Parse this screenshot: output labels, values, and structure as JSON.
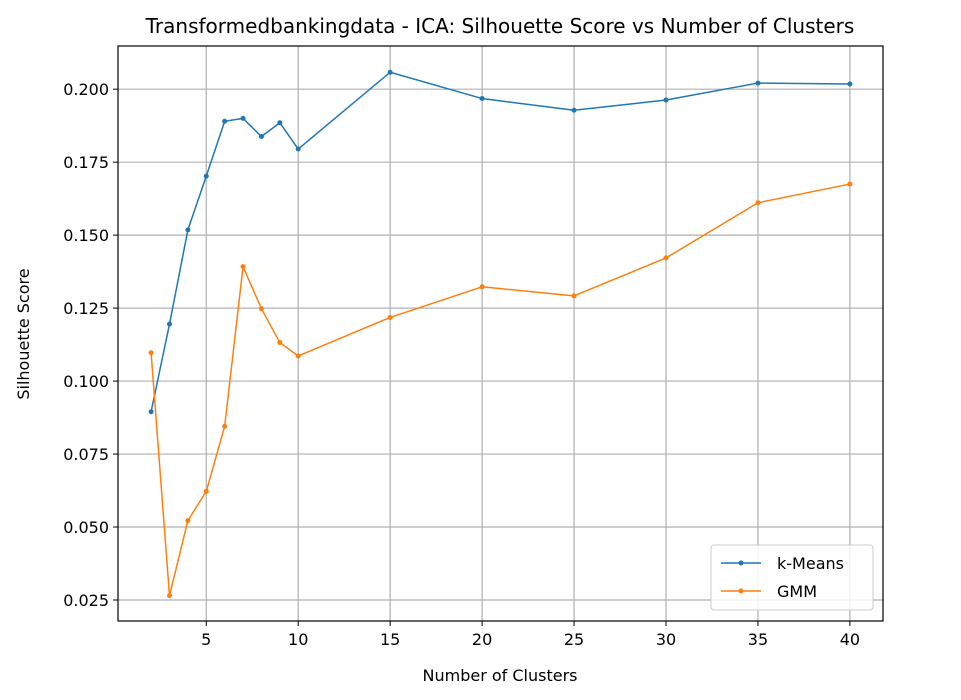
{
  "chart_data": {
    "type": "line",
    "title": "Transformedbankingdata - ICA: Silhouette Score vs Number of Clusters",
    "xlabel": "Number of Clusters",
    "ylabel": "Silhouette Score",
    "x": [
      2,
      3,
      4,
      5,
      6,
      7,
      8,
      9,
      10,
      15,
      20,
      25,
      30,
      35,
      40
    ],
    "xlim": [
      0.2,
      41.8
    ],
    "ylim": [
      0.0178,
      0.2148
    ],
    "xticks": [
      5,
      10,
      15,
      20,
      25,
      30,
      35,
      40
    ],
    "yticks": [
      0.025,
      0.05,
      0.075,
      0.1,
      0.125,
      0.15,
      0.175,
      0.2
    ],
    "xtick_labels": [
      "5",
      "10",
      "15",
      "20",
      "25",
      "30",
      "35",
      "40"
    ],
    "ytick_labels": [
      "0.025",
      "0.050",
      "0.075",
      "0.100",
      "0.125",
      "0.150",
      "0.175",
      "0.200"
    ],
    "grid": true,
    "legend_position": "lower-right",
    "series": [
      {
        "name": "k-Means",
        "color": "#1f77b4",
        "values": [
          0.0895,
          0.1195,
          0.1518,
          0.1702,
          0.189,
          0.19,
          0.1838,
          0.1885,
          0.1795,
          0.2058,
          0.1968,
          0.1928,
          0.1963,
          0.2021,
          0.2018
        ]
      },
      {
        "name": "GMM",
        "color": "#ff7f0e",
        "values": [
          0.1097,
          0.0265,
          0.0522,
          0.0622,
          0.0845,
          0.1392,
          0.1248,
          0.1132,
          0.1086,
          0.1218,
          0.1323,
          0.1292,
          0.1422,
          0.1611,
          0.1675
        ]
      }
    ]
  }
}
